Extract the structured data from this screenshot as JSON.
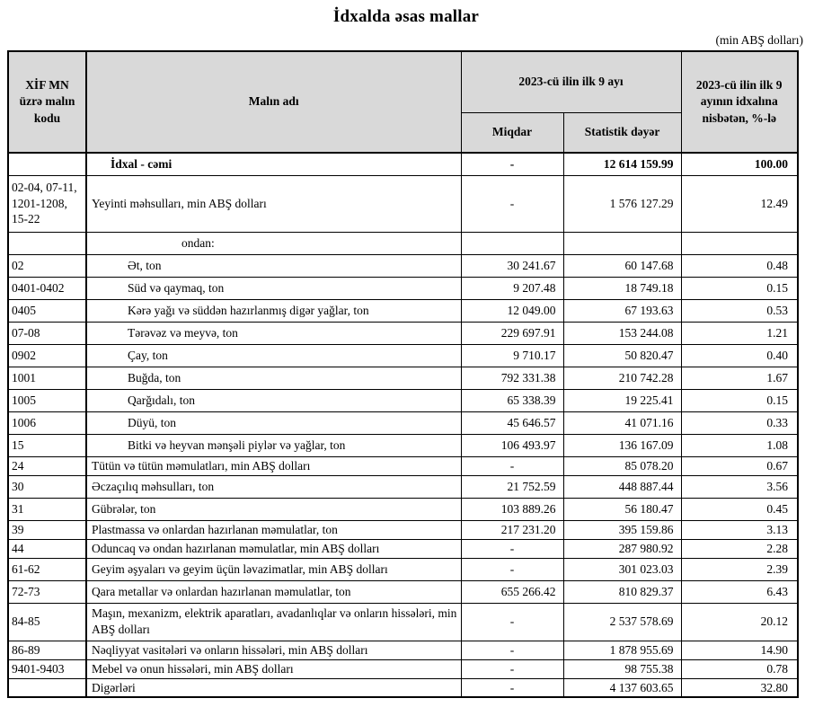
{
  "title": "İdxalda əsas mallar",
  "unit_note": "(min ABŞ dolları)",
  "colors": {
    "header_bg": "#d9d9d9",
    "border": "#000000"
  },
  "table": {
    "headers": {
      "code": "XİF MN üzrə malın kodu",
      "name": "Malın adı",
      "period": "2023-cü ilin ilk 9 ayı",
      "quantity": "Miqdar",
      "value": "Statistik dəyər",
      "share": "2023-cü ilin ilk 9 ayının idxalına nisbətən, %-lə"
    },
    "rows": [
      {
        "code": "",
        "name": "İdxal - cəmi",
        "quantity": "-",
        "value": "12 614 159.99",
        "share": "100.00",
        "style": "total",
        "height": "normal"
      },
      {
        "code": "02-04, 07-11, 1201-1208, 15-22",
        "name": "Yeyinti məhsulları, min ABŞ dolları",
        "quantity": "-",
        "value": "1 576 127.29",
        "share": "12.49",
        "style": "normal",
        "height": "tall3"
      },
      {
        "code": "",
        "name": "ondan:",
        "quantity": "",
        "value": "",
        "share": "",
        "style": "subheader",
        "height": "normal"
      },
      {
        "code": "02",
        "name": "Ət, ton",
        "quantity": "30 241.67",
        "value": "60 147.68",
        "share": "0.48",
        "style": "sub",
        "height": "normal"
      },
      {
        "code": "0401-0402",
        "name": "Süd və qaymaq, ton",
        "quantity": "9 207.48",
        "value": "18 749.18",
        "share": "0.15",
        "style": "sub",
        "height": "normal"
      },
      {
        "code": "0405",
        "name": "Kərə yağı və süddən hazırlanmış digər yağlar, ton",
        "quantity": "12 049.00",
        "value": "67 193.63",
        "share": "0.53",
        "style": "sub",
        "height": "normal"
      },
      {
        "code": "07-08",
        "name": "Tərəvəz və meyvə, ton",
        "quantity": "229 697.91",
        "value": "153 244.08",
        "share": "1.21",
        "style": "sub",
        "height": "normal"
      },
      {
        "code": "0902",
        "name": "Çay, ton",
        "quantity": "9 710.17",
        "value": "50 820.47",
        "share": "0.40",
        "style": "sub",
        "height": "normal"
      },
      {
        "code": "1001",
        "name": "Buğda, ton",
        "quantity": "792 331.38",
        "value": "210 742.28",
        "share": "1.67",
        "style": "sub",
        "height": "normal"
      },
      {
        "code": "1005",
        "name": "Qarğıdalı, ton",
        "quantity": "65 338.39",
        "value": "19 225.41",
        "share": "0.15",
        "style": "sub",
        "height": "normal"
      },
      {
        "code": "1006",
        "name": "Düyü, ton",
        "quantity": "45 646.57",
        "value": "41 071.16",
        "share": "0.33",
        "style": "sub",
        "height": "normal"
      },
      {
        "code": "15",
        "name": "Bitki və heyvan mənşəli piylər və yağlar, ton",
        "quantity": "106 493.97",
        "value": "136 167.09",
        "share": "1.08",
        "style": "sub",
        "height": "normal"
      },
      {
        "code": "24",
        "name": "Tütün və tütün məmulatları, min ABŞ dolları",
        "quantity": "-",
        "value": "85 078.20",
        "share": "0.67",
        "style": "normal",
        "height": "short"
      },
      {
        "code": "30",
        "name": "Əczaçılıq məhsulları, ton",
        "quantity": "21 752.59",
        "value": "448 887.44",
        "share": "3.56",
        "style": "normal",
        "height": "normal"
      },
      {
        "code": "31",
        "name": "Gübrələr, ton",
        "quantity": "103 889.26",
        "value": "56 180.47",
        "share": "0.45",
        "style": "normal",
        "height": "normal"
      },
      {
        "code": "39",
        "name": "Plastmassa və onlardan hazırlanan məmulatlar, ton",
        "quantity": "217 231.20",
        "value": "395 159.86",
        "share": "3.13",
        "style": "normal",
        "height": "short"
      },
      {
        "code": "44",
        "name": "Oduncaq və ondan hazırlanan məmulatlar, min ABŞ dolları",
        "quantity": "-",
        "value": "287 980.92",
        "share": "2.28",
        "style": "normal",
        "height": "short"
      },
      {
        "code": "61-62",
        "name": "Geyim əşyaları və geyim üçün ləvazimatlar, min ABŞ dolları",
        "quantity": "-",
        "value": "301 023.03",
        "share": "2.39",
        "style": "normal",
        "height": "normal"
      },
      {
        "code": "72-73",
        "name": "Qara metallar və onlardan hazırlanan məmulatlar, ton",
        "quantity": "655 266.42",
        "value": "810 829.37",
        "share": "6.43",
        "style": "normal",
        "height": "normal"
      },
      {
        "code": "84-85",
        "name": "Maşın, mexanizm, elektrik aparatları, avadanlıqlar və onların hissələri, min ABŞ dolları",
        "quantity": "-",
        "value": "2 537 578.69",
        "share": "20.12",
        "style": "normal",
        "height": "tall2"
      },
      {
        "code": "86-89",
        "name": "Nəqliyyat vasitələri və onların hissələri, min ABŞ dolları",
        "quantity": "-",
        "value": "1 878 955.69",
        "share": "14.90",
        "style": "normal",
        "height": "short"
      },
      {
        "code": "9401-9403",
        "name": "Mebel və onun hissələri, min ABŞ dolları",
        "quantity": "-",
        "value": "98 755.38",
        "share": "0.78",
        "style": "normal",
        "height": "short"
      },
      {
        "code": "",
        "name": "Digərləri",
        "quantity": "-",
        "value": "4 137 603.65",
        "share": "32.80",
        "style": "normal",
        "height": "short"
      }
    ]
  }
}
